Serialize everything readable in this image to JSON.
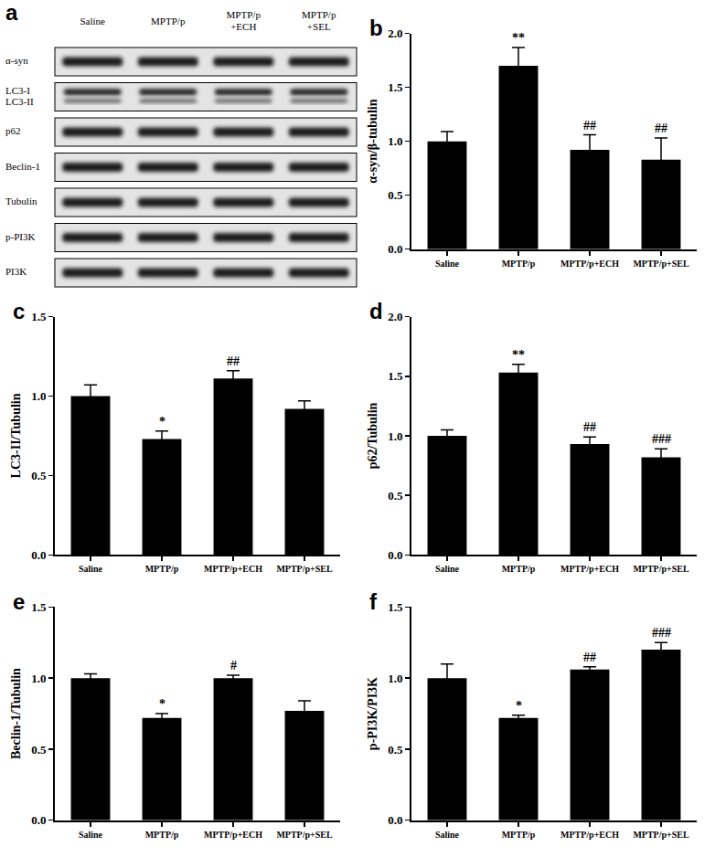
{
  "blot": {
    "panel": "a",
    "lanes": [
      "Saline",
      "MPTP/p",
      "MPTP/p\n+ECH",
      "MPTP/p\n+SEL"
    ],
    "rows": [
      "α-syn",
      "LC3-I\nLC3-II",
      "p62",
      "Beclin-1",
      "Tubulin",
      "p-PI3K",
      "PI3K"
    ]
  },
  "chart_data": [
    {
      "panel": "b",
      "type": "bar",
      "categories": [
        "Saline",
        "MPTP/p",
        "MPTP/p+ECH",
        "MPTP/p+SEL"
      ],
      "values": [
        1.0,
        1.7,
        0.92,
        0.83
      ],
      "errors": [
        0.09,
        0.17,
        0.14,
        0.2
      ],
      "significance": [
        null,
        "**",
        "##",
        "##"
      ],
      "color": "#000000",
      "y_label": "α-syn/β-tubulin",
      "ylim": [
        0,
        2
      ],
      "yticks": [
        {
          "value": 0,
          "label": "0.0"
        },
        {
          "value": 0.5,
          "label": "0.5"
        },
        {
          "value": 1,
          "label": "1.0"
        },
        {
          "value": 1.5,
          "label": "1.5"
        },
        {
          "value": 2,
          "label": "2.0"
        }
      ],
      "grid": false
    },
    {
      "panel": "c",
      "type": "bar",
      "categories": [
        "Saline",
        "MPTP/p",
        "MPTP/p+ECH",
        "MPTP/p+SEL"
      ],
      "values": [
        1.0,
        0.73,
        1.11,
        0.92
      ],
      "errors": [
        0.07,
        0.05,
        0.05,
        0.05
      ],
      "significance": [
        null,
        "*",
        "##",
        null
      ],
      "color": "#000000",
      "y_label": "LC3-II/Tubulin",
      "ylim": [
        0,
        1.5
      ],
      "yticks": [
        {
          "value": 0,
          "label": "0.0"
        },
        {
          "value": 0.5,
          "label": "0.5"
        },
        {
          "value": 1,
          "label": "1.0"
        },
        {
          "value": 1.5,
          "label": "1.5"
        }
      ],
      "grid": false
    },
    {
      "panel": "d",
      "type": "bar",
      "categories": [
        "Saline",
        "MPTP/p",
        "MPTP/p+ECH",
        "MPTP/p+SEL"
      ],
      "values": [
        1.0,
        1.53,
        0.93,
        0.82
      ],
      "errors": [
        0.05,
        0.07,
        0.06,
        0.07
      ],
      "significance": [
        null,
        "**",
        "##",
        "###"
      ],
      "color": "#000000",
      "y_label": "p62/Tubulin",
      "ylim": [
        0,
        2
      ],
      "yticks": [
        {
          "value": 0,
          "label": "0.0"
        },
        {
          "value": 0.5,
          "label": "0.5"
        },
        {
          "value": 1,
          "label": "1.0"
        },
        {
          "value": 1.5,
          "label": "1.5"
        },
        {
          "value": 2,
          "label": "2.0"
        }
      ],
      "grid": false
    },
    {
      "panel": "e",
      "type": "bar",
      "categories": [
        "Saline",
        "MPTP/p",
        "MPTP/p+ECH",
        "MPTP/p+SEL"
      ],
      "values": [
        1.0,
        0.72,
        1.0,
        0.77
      ],
      "errors": [
        0.03,
        0.03,
        0.02,
        0.07
      ],
      "significance": [
        null,
        "*",
        "#",
        null
      ],
      "color": "#000000",
      "y_label": "Beclin-1/Tubulin",
      "ylim": [
        0,
        1.5
      ],
      "yticks": [
        {
          "value": 0,
          "label": "0.0"
        },
        {
          "value": 0.5,
          "label": "0.5"
        },
        {
          "value": 1,
          "label": "1.0"
        },
        {
          "value": 1.5,
          "label": "1.5"
        }
      ],
      "grid": false
    },
    {
      "panel": "f",
      "type": "bar",
      "categories": [
        "Saline",
        "MPTP/p",
        "MPTP/p+ECH",
        "MPTP/p+SEL"
      ],
      "values": [
        1.0,
        0.72,
        1.06,
        1.2
      ],
      "errors": [
        0.1,
        0.02,
        0.02,
        0.05
      ],
      "significance": [
        null,
        "*",
        "##",
        "###"
      ],
      "color": "#000000",
      "y_label": "p-PI3K/PI3K",
      "ylim": [
        0,
        1.5
      ],
      "yticks": [
        {
          "value": 0,
          "label": "0.0"
        },
        {
          "value": 0.5,
          "label": "0.5"
        },
        {
          "value": 1,
          "label": "1.0"
        },
        {
          "value": 1.5,
          "label": "1.5"
        }
      ],
      "grid": false
    }
  ]
}
